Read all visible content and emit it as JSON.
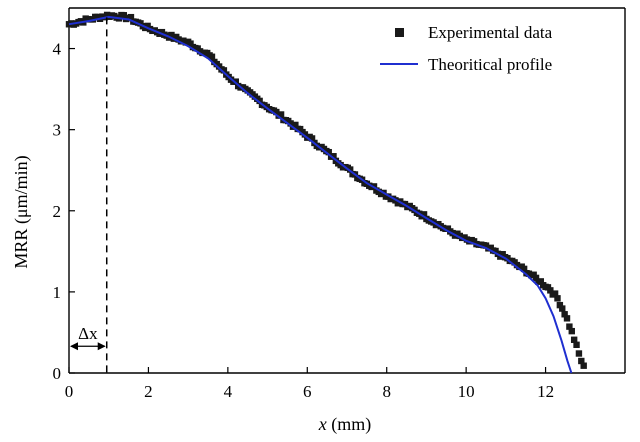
{
  "chart_data": {
    "type": "scatter",
    "xlabel_var": "x",
    "xlabel_unit": " (mm)",
    "ylabel": "MRR (μm/min)",
    "xlim": [
      0,
      14
    ],
    "ylim": [
      0,
      4.5
    ],
    "x_ticks": [
      "0",
      "2",
      "4",
      "6",
      "8",
      "10",
      "12"
    ],
    "y_ticks": [
      "0",
      "1",
      "2",
      "3",
      "4"
    ],
    "x_tick_values": [
      0,
      2,
      4,
      6,
      8,
      10,
      12
    ],
    "y_tick_values": [
      0,
      1,
      2,
      3,
      4
    ],
    "legend": {
      "placement": "top-right"
    },
    "series": [
      {
        "name": "Experimental data",
        "kind": "scatter",
        "color": "#1a1a1a",
        "points": [
          [
            0.0,
            4.3
          ],
          [
            0.5,
            4.36
          ],
          [
            1.0,
            4.41
          ],
          [
            1.5,
            4.38
          ],
          [
            2.0,
            4.25
          ],
          [
            2.5,
            4.16
          ],
          [
            3.0,
            4.07
          ],
          [
            3.5,
            3.93
          ],
          [
            4.0,
            3.66
          ],
          [
            4.5,
            3.46
          ],
          [
            5.0,
            3.28
          ],
          [
            5.5,
            3.11
          ],
          [
            6.0,
            2.92
          ],
          [
            6.5,
            2.72
          ],
          [
            7.0,
            2.52
          ],
          [
            7.5,
            2.34
          ],
          [
            8.0,
            2.19
          ],
          [
            8.5,
            2.06
          ],
          [
            9.0,
            1.92
          ],
          [
            9.5,
            1.77
          ],
          [
            10.0,
            1.64
          ],
          [
            10.5,
            1.55
          ],
          [
            11.0,
            1.42
          ],
          [
            11.5,
            1.26
          ],
          [
            11.8,
            1.15
          ],
          [
            12.1,
            1.04
          ],
          [
            12.3,
            0.92
          ],
          [
            12.5,
            0.72
          ],
          [
            12.7,
            0.45
          ],
          [
            12.85,
            0.22
          ],
          [
            13.0,
            0.02
          ]
        ]
      },
      {
        "name": "Theoritical profile",
        "kind": "line",
        "color": "#1f2fd0",
        "points": [
          [
            0.0,
            4.3
          ],
          [
            0.5,
            4.34
          ],
          [
            1.0,
            4.39
          ],
          [
            1.5,
            4.36
          ],
          [
            2.0,
            4.25
          ],
          [
            2.5,
            4.15
          ],
          [
            3.0,
            4.03
          ],
          [
            3.5,
            3.88
          ],
          [
            4.0,
            3.66
          ],
          [
            4.5,
            3.45
          ],
          [
            5.0,
            3.26
          ],
          [
            5.5,
            3.08
          ],
          [
            6.0,
            2.9
          ],
          [
            6.5,
            2.71
          ],
          [
            7.0,
            2.52
          ],
          [
            7.5,
            2.34
          ],
          [
            8.0,
            2.2
          ],
          [
            8.5,
            2.06
          ],
          [
            9.0,
            1.91
          ],
          [
            9.5,
            1.76
          ],
          [
            10.0,
            1.63
          ],
          [
            10.5,
            1.54
          ],
          [
            11.0,
            1.41
          ],
          [
            11.5,
            1.22
          ],
          [
            11.8,
            1.08
          ],
          [
            12.0,
            0.92
          ],
          [
            12.2,
            0.7
          ],
          [
            12.4,
            0.4
          ],
          [
            12.55,
            0.15
          ],
          [
            12.65,
            0.0
          ]
        ]
      }
    ],
    "annotation": {
      "label": "Δx",
      "dashed_line_x": 0.95,
      "arrow_y": 0.33
    }
  }
}
